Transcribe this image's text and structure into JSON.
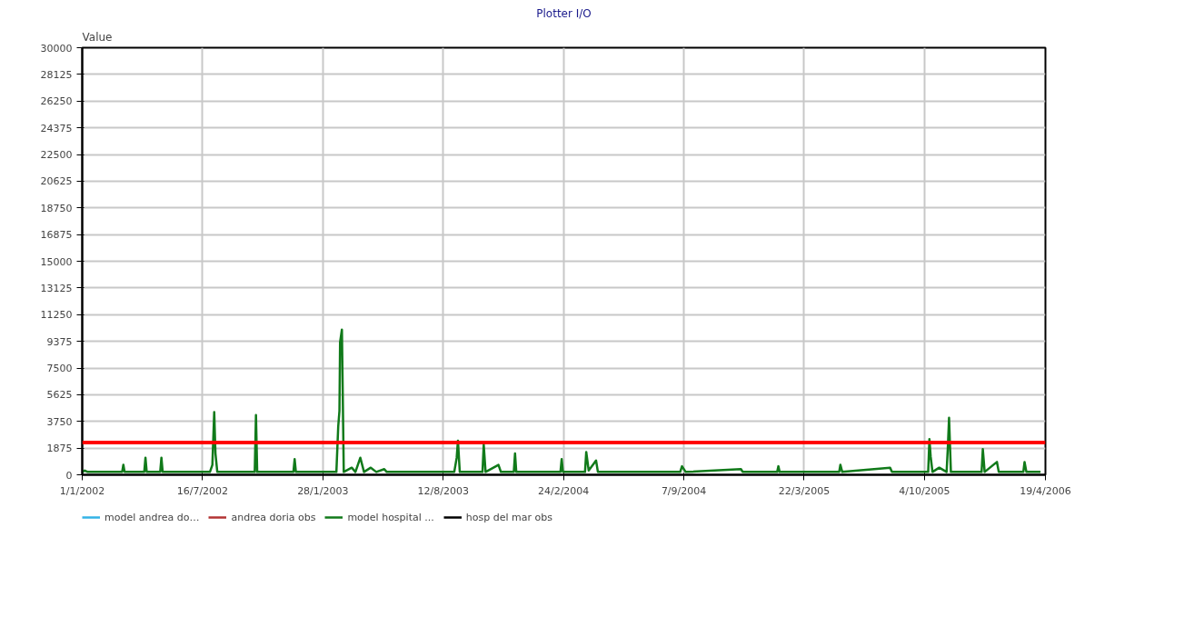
{
  "chart_data": {
    "type": "line",
    "title": "Plotter I/O",
    "ylabel": "Value",
    "xlim": [
      "2002-01-01",
      "2006-04-19"
    ],
    "ylim": [
      0,
      30000
    ],
    "xticks": [
      {
        "value": "2002-01-01",
        "label": "1/1/2002"
      },
      {
        "value": "2002-07-16",
        "label": "16/7/2002"
      },
      {
        "value": "2003-01-28",
        "label": "28/1/2003"
      },
      {
        "value": "2003-08-12",
        "label": "12/8/2003"
      },
      {
        "value": "2004-02-24",
        "label": "24/2/2004"
      },
      {
        "value": "2004-09-07",
        "label": "7/9/2004"
      },
      {
        "value": "2005-03-22",
        "label": "22/3/2005"
      },
      {
        "value": "2005-10-04",
        "label": "4/10/2005"
      },
      {
        "value": "2006-04-19",
        "label": "19/4/2006"
      }
    ],
    "yticks": [
      0,
      1875,
      3750,
      5625,
      7500,
      9375,
      11250,
      13125,
      15000,
      16875,
      18750,
      20625,
      22500,
      24375,
      26250,
      28125,
      30000
    ],
    "grid": true,
    "legend": "bottom",
    "line_style": "solid",
    "x": [
      "2002-01-01",
      "2002-01-05",
      "2002-01-10",
      "2002-03-07",
      "2002-03-09",
      "2002-03-11",
      "2002-04-12",
      "2002-04-14",
      "2002-04-16",
      "2002-05-08",
      "2002-05-10",
      "2002-05-12",
      "2002-07-28",
      "2002-08-01",
      "2002-08-04",
      "2002-08-06",
      "2002-08-09",
      "2002-10-09",
      "2002-10-11",
      "2002-10-13",
      "2002-12-11",
      "2002-12-13",
      "2002-12-15",
      "2003-02-19",
      "2003-02-22",
      "2003-02-24",
      "2003-02-25",
      "2003-02-28",
      "2003-03-03",
      "2003-03-16",
      "2003-03-22",
      "2003-03-30",
      "2003-04-05",
      "2003-04-16",
      "2003-04-25",
      "2003-05-08",
      "2003-05-12",
      "2003-08-30",
      "2003-09-03",
      "2003-09-05",
      "2003-09-08",
      "2003-10-15",
      "2003-10-17",
      "2003-10-20",
      "2003-11-10",
      "2003-11-14",
      "2003-12-05",
      "2003-12-07",
      "2003-12-09",
      "2004-02-19",
      "2004-02-21",
      "2004-02-23",
      "2004-03-30",
      "2004-04-01",
      "2004-04-05",
      "2004-04-17",
      "2004-04-20",
      "2004-09-01",
      "2004-09-04",
      "2004-09-10",
      "2004-12-09",
      "2004-12-12",
      "2005-02-06",
      "2005-02-08",
      "2005-02-10",
      "2005-05-18",
      "2005-05-20",
      "2005-05-23",
      "2005-08-09",
      "2005-08-12",
      "2005-10-10",
      "2005-10-12",
      "2005-10-14",
      "2005-10-17",
      "2005-10-28",
      "2005-11-09",
      "2005-11-11",
      "2005-11-13",
      "2005-11-16",
      "2006-01-05",
      "2006-01-07",
      "2006-01-10",
      "2006-01-30",
      "2006-02-02",
      "2006-03-14",
      "2006-03-16",
      "2006-03-19",
      "2006-04-11"
    ],
    "series": [
      {
        "name": "model andrea do…",
        "color": "#33b3e6",
        "values": [
          null,
          null,
          null,
          null,
          null,
          null,
          null,
          null,
          null,
          null,
          null,
          null,
          null,
          null,
          null,
          null,
          null,
          null,
          null,
          null,
          null,
          null,
          null,
          null,
          null,
          null,
          null,
          null,
          null,
          null,
          null,
          null,
          null,
          null,
          null,
          null,
          null,
          null,
          null,
          null,
          null,
          null,
          null,
          null,
          null,
          null,
          null,
          null,
          null,
          null,
          null,
          null,
          null,
          null,
          null,
          null,
          null,
          null,
          null,
          null,
          null,
          null,
          null,
          null,
          null,
          null,
          null,
          null,
          null,
          null,
          null,
          null,
          null,
          null,
          null,
          null,
          null,
          null,
          null,
          null,
          null,
          null,
          null,
          null,
          null,
          null,
          null,
          null
        ]
      },
      {
        "name": "andrea doria obs",
        "color": "#b33333",
        "values": [
          null,
          null,
          null,
          null,
          null,
          null,
          null,
          null,
          null,
          null,
          null,
          null,
          null,
          null,
          null,
          null,
          null,
          null,
          null,
          null,
          null,
          null,
          null,
          null,
          null,
          null,
          null,
          null,
          null,
          null,
          null,
          null,
          null,
          null,
          null,
          null,
          null,
          null,
          null,
          null,
          null,
          null,
          null,
          null,
          null,
          null,
          null,
          null,
          null,
          null,
          null,
          null,
          null,
          null,
          null,
          null,
          null,
          null,
          null,
          null,
          null,
          null,
          null,
          null,
          null,
          null,
          null,
          null,
          null,
          null,
          null,
          null,
          null,
          null,
          null,
          null,
          null,
          null,
          null,
          null,
          null,
          null,
          null,
          null,
          null,
          null,
          null,
          null
        ]
      },
      {
        "name": "model hospital ...",
        "color": "#117a1a",
        "values": [
          200,
          300,
          200,
          200,
          700,
          200,
          200,
          1200,
          200,
          200,
          1200,
          200,
          200,
          700,
          4400,
          1500,
          200,
          200,
          4200,
          200,
          200,
          1100,
          200,
          200,
          3400,
          4500,
          9300,
          10200,
          200,
          500,
          200,
          1200,
          200,
          500,
          200,
          400,
          200,
          200,
          1200,
          2400,
          200,
          200,
          2100,
          200,
          700,
          200,
          200,
          1500,
          200,
          200,
          1100,
          200,
          200,
          1600,
          300,
          1000,
          200,
          200,
          600,
          200,
          400,
          200,
          200,
          600,
          200,
          200,
          700,
          200,
          500,
          200,
          200,
          2500,
          1300,
          200,
          500,
          200,
          1900,
          4000,
          200,
          200,
          1800,
          200,
          900,
          200,
          200,
          900,
          200,
          200
        ]
      },
      {
        "name": "hosp del mar obs",
        "color": "#000000",
        "values": [
          null,
          null,
          null,
          null,
          null,
          null,
          null,
          null,
          null,
          null,
          null,
          null,
          null,
          null,
          null,
          null,
          null,
          null,
          null,
          null,
          null,
          null,
          null,
          null,
          null,
          null,
          null,
          null,
          null,
          null,
          null,
          null,
          null,
          null,
          null,
          null,
          null,
          null,
          null,
          null,
          null,
          null,
          null,
          null,
          null,
          null,
          null,
          null,
          null,
          null,
          null,
          null,
          null,
          null,
          null,
          null,
          null,
          null,
          null,
          null,
          null,
          null,
          null,
          null,
          null,
          null,
          null,
          null,
          null,
          null,
          null,
          null,
          null,
          null,
          null,
          null,
          null,
          null,
          null,
          null,
          null,
          null,
          null,
          null,
          null,
          null,
          null,
          null
        ]
      }
    ],
    "ref_lines": [
      {
        "axis": "y",
        "value": 2260,
        "color": "#ff0000"
      }
    ]
  }
}
